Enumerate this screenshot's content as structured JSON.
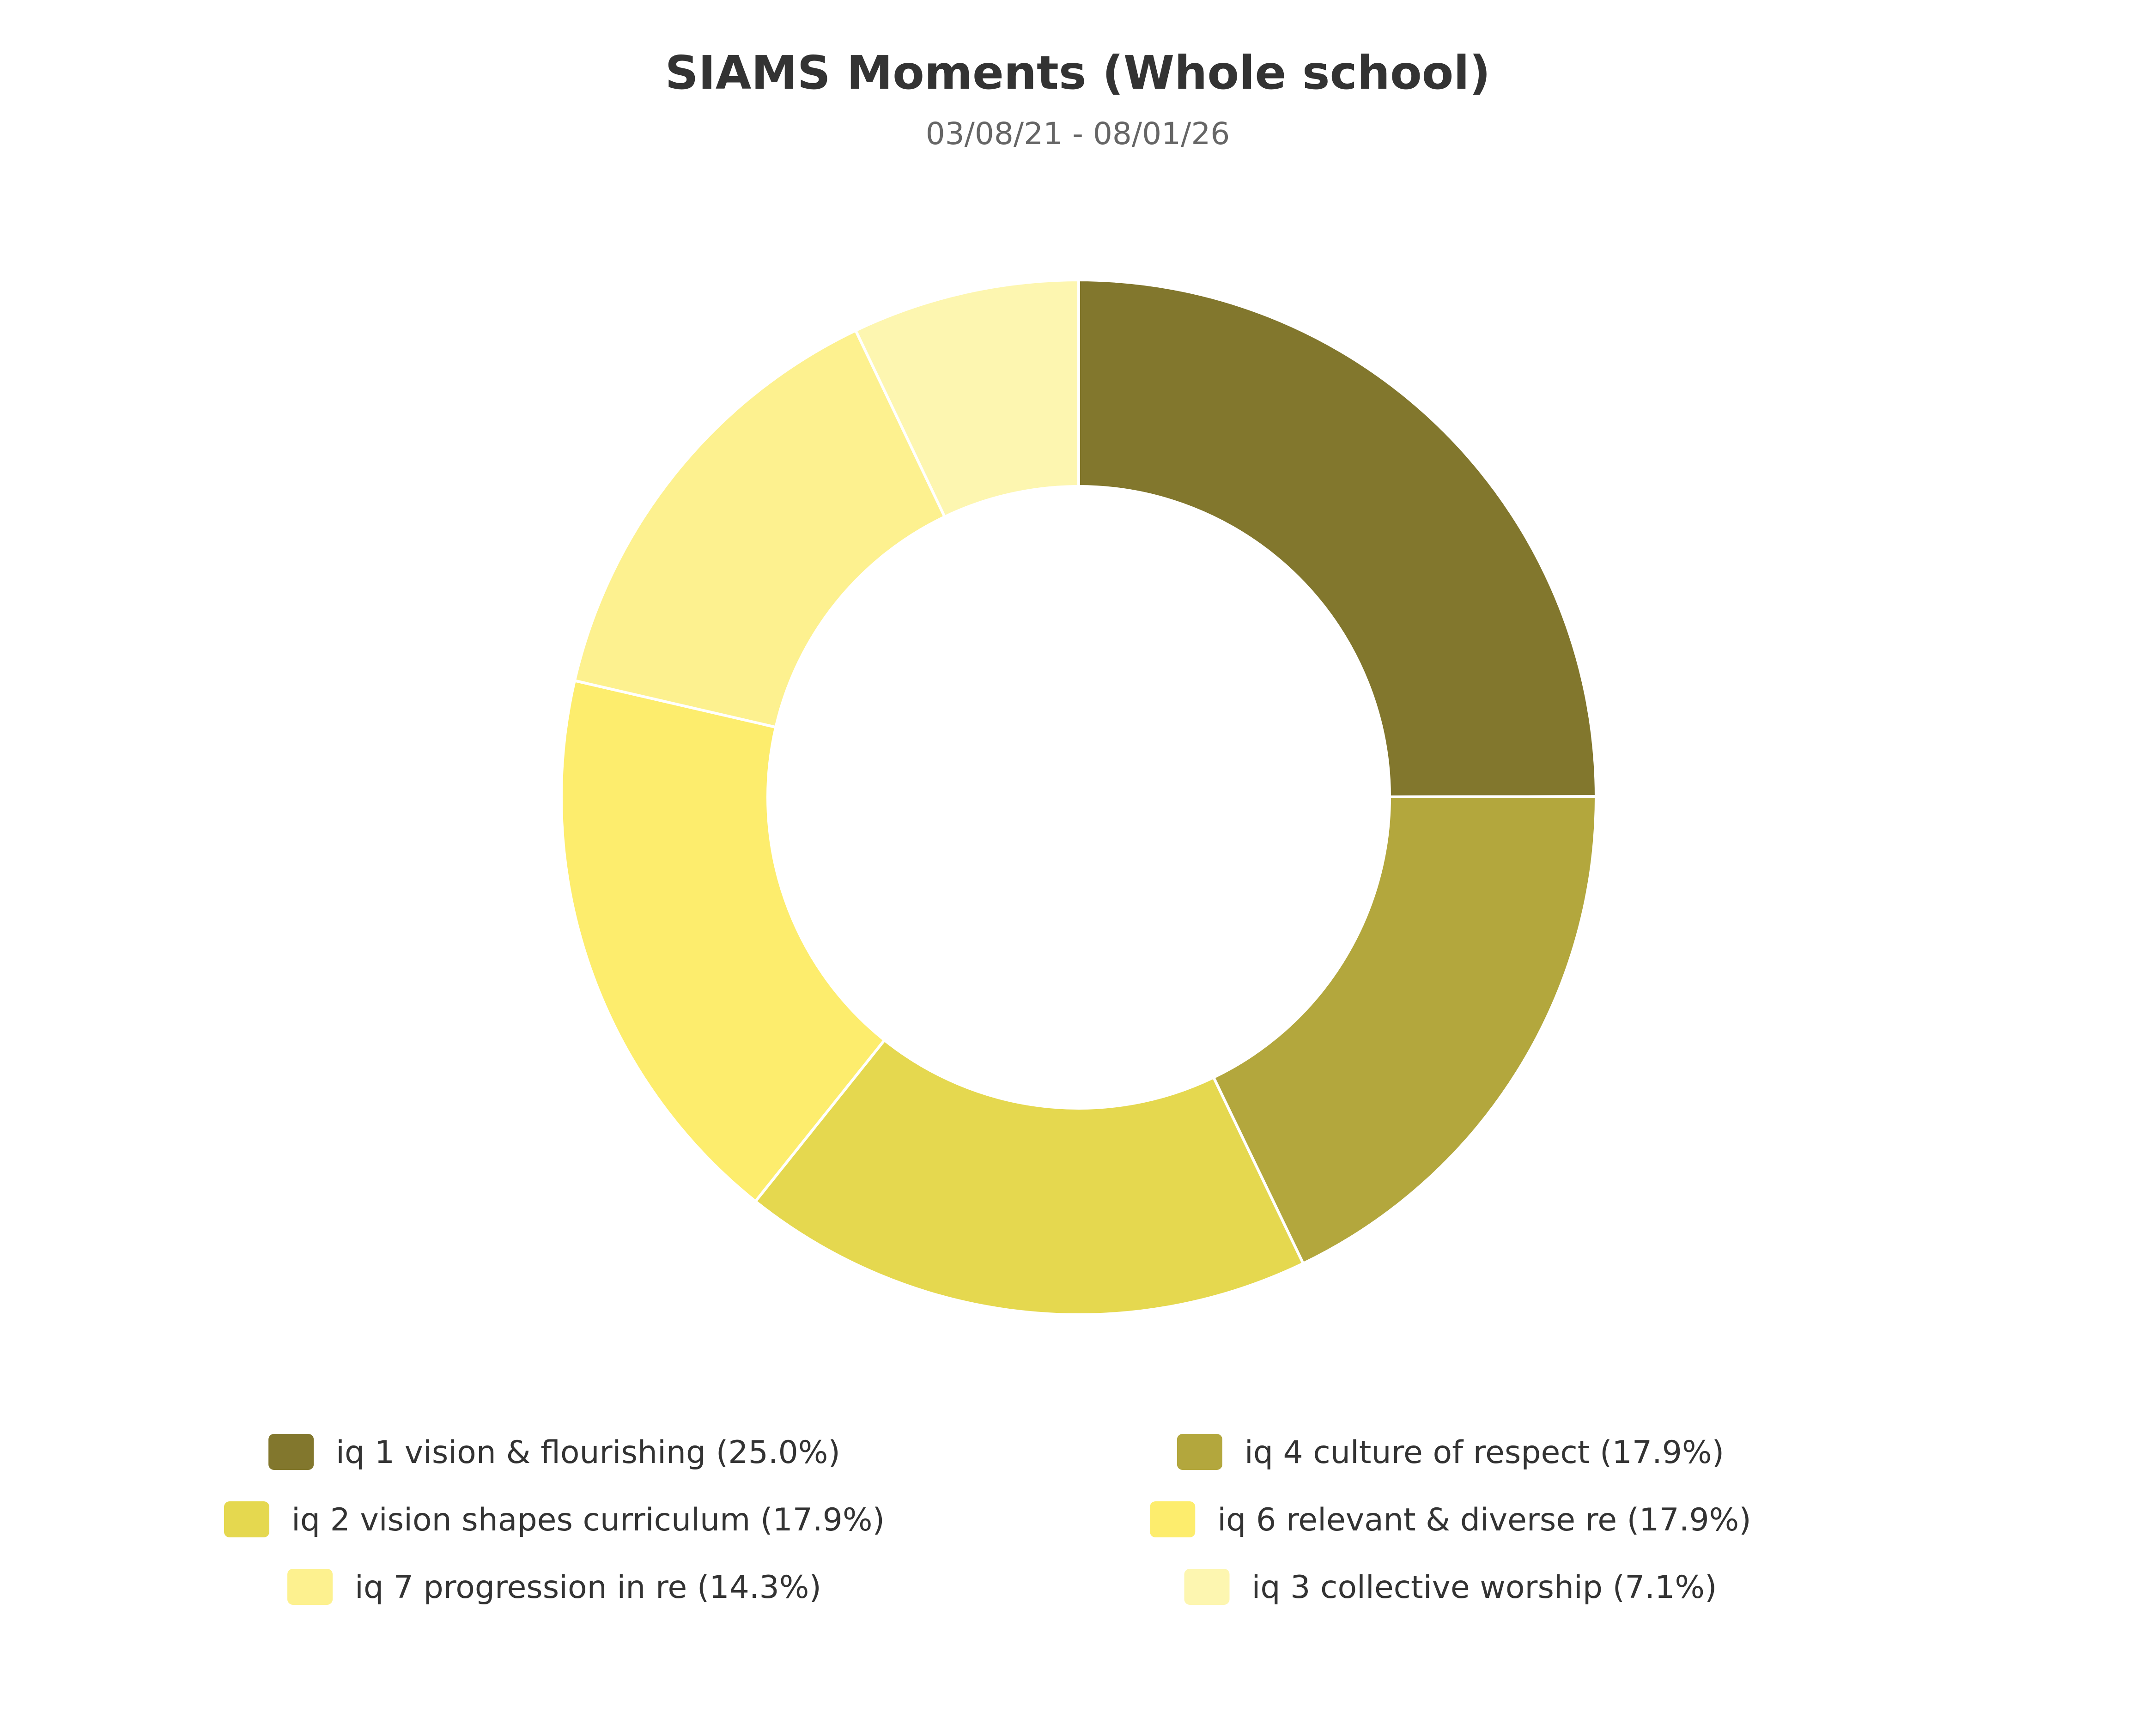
{
  "chart_data": {
    "type": "pie",
    "title": "SIAMS Moments (Whole school)",
    "subtitle": "03/08/21 - 08/01/26",
    "donut": true,
    "legend_position": "bottom",
    "slices": [
      {
        "label": "iq 1 vision & flourishing",
        "percent_label": "(25.0%)",
        "value": 25.0,
        "color": "#82772d"
      },
      {
        "label": "iq 4 culture of respect",
        "percent_label": "(17.9%)",
        "value": 17.9,
        "color": "#b3a73d"
      },
      {
        "label": "iq 2 vision shapes curriculum",
        "percent_label": "(17.9%)",
        "value": 17.9,
        "color": "#e5d84f"
      },
      {
        "label": "iq 6 relevant & diverse re",
        "percent_label": "(17.9%)",
        "value": 17.9,
        "color": "#fded6d"
      },
      {
        "label": "iq 7 progression in re",
        "percent_label": "(14.3%)",
        "value": 14.3,
        "color": "#fdf18f"
      },
      {
        "label": "iq 3 collective worship",
        "percent_label": "(7.1%)",
        "value": 7.1,
        "color": "#fdf6b0"
      }
    ]
  }
}
